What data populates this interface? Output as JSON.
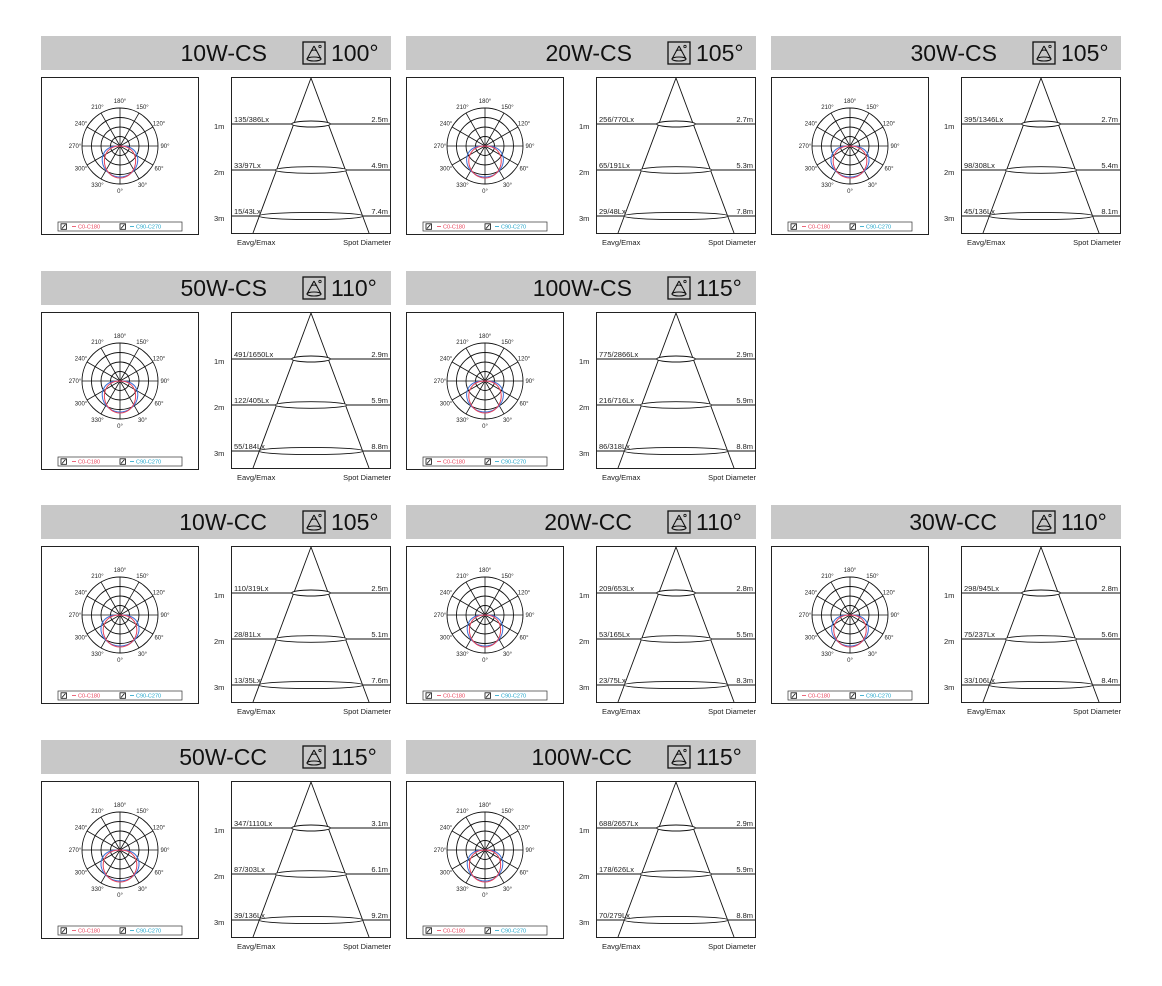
{
  "legend": {
    "c0": "C0-C180",
    "c90": "C90-C270"
  },
  "polar_labels": [
    "180°",
    "210°",
    "150°",
    "240°",
    "120°",
    "270°",
    "90°",
    "300°",
    "60°",
    "330°",
    "30°",
    "0°"
  ],
  "cone_labels": {
    "left": "Eavg/Emax",
    "right": "Spot Diameter",
    "distances": [
      "1m",
      "2m",
      "3m"
    ]
  },
  "colors": {
    "header_bg": "#c8c8c8",
    "c0_curve": "#e8425a",
    "c90_curve": "#3b6fd8",
    "legend_c0": "#e8425a",
    "legend_c90": "#1fa3c8"
  },
  "panels": [
    {
      "model": "10W-CS",
      "angle": "100°",
      "rows": [
        {
          "lux": "135/386Lx",
          "dia": "2.5m"
        },
        {
          "lux": "33/97Lx",
          "dia": "4.9m"
        },
        {
          "lux": "15/43Lx",
          "dia": "7.4m"
        }
      ]
    },
    {
      "model": "20W-CS",
      "angle": "105°",
      "rows": [
        {
          "lux": "256/770Lx",
          "dia": "2.7m"
        },
        {
          "lux": "65/191Lx",
          "dia": "5.3m"
        },
        {
          "lux": "29/48Lx",
          "dia": "7.8m"
        }
      ]
    },
    {
      "model": "30W-CS",
      "angle": "105°",
      "rows": [
        {
          "lux": "395/1346Lx",
          "dia": "2.7m"
        },
        {
          "lux": "98/308Lx",
          "dia": "5.4m"
        },
        {
          "lux": "45/136Lx",
          "dia": "8.1m"
        }
      ]
    },
    {
      "model": "50W-CS",
      "angle": "110°",
      "rows": [
        {
          "lux": "491/1650Lx",
          "dia": "2.9m"
        },
        {
          "lux": "122/405Lx",
          "dia": "5.9m"
        },
        {
          "lux": "55/184Lx",
          "dia": "8.8m"
        }
      ]
    },
    {
      "model": "100W-CS",
      "angle": "115°",
      "rows": [
        {
          "lux": "775/2866Lx",
          "dia": "2.9m"
        },
        {
          "lux": "216/716Lx",
          "dia": "5.9m"
        },
        {
          "lux": "86/318Lx",
          "dia": "8.8m"
        }
      ]
    },
    {
      "model": "10W-CC",
      "angle": "105°",
      "rows": [
        {
          "lux": "110/319Lx",
          "dia": "2.5m"
        },
        {
          "lux": "28/81Lx",
          "dia": "5.1m"
        },
        {
          "lux": "13/35Lx",
          "dia": "7.6m"
        }
      ]
    },
    {
      "model": "20W-CC",
      "angle": "110°",
      "rows": [
        {
          "lux": "209/653Lx",
          "dia": "2.8m"
        },
        {
          "lux": "53/165Lx",
          "dia": "5.5m"
        },
        {
          "lux": "23/75Lx",
          "dia": "8.3m"
        }
      ]
    },
    {
      "model": "30W-CC",
      "angle": "110°",
      "rows": [
        {
          "lux": "298/945Lx",
          "dia": "2.8m"
        },
        {
          "lux": "75/237Lx",
          "dia": "5.6m"
        },
        {
          "lux": "33/106Lx",
          "dia": "8.4m"
        }
      ]
    },
    {
      "model": "50W-CC",
      "angle": "115°",
      "rows": [
        {
          "lux": "347/1110Lx",
          "dia": "3.1m"
        },
        {
          "lux": "87/303Lx",
          "dia": "6.1m"
        },
        {
          "lux": "39/136Lx",
          "dia": "9.2m"
        }
      ]
    },
    {
      "model": "100W-CC",
      "angle": "115°",
      "rows": [
        {
          "lux": "688/2657Lx",
          "dia": "2.9m"
        },
        {
          "lux": "178/626Lx",
          "dia": "5.9m"
        },
        {
          "lux": "70/279Lx",
          "dia": "8.8m"
        }
      ]
    }
  ]
}
